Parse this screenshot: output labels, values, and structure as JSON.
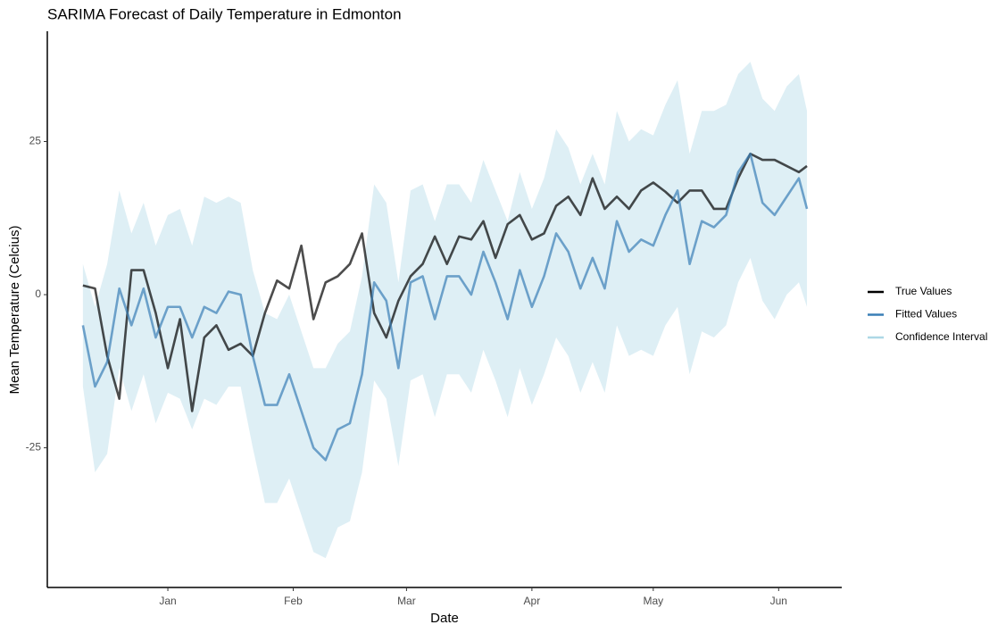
{
  "chart_data": {
    "type": "line",
    "title": "SARIMA Forecast of Daily Temperature in Edmonton",
    "xlabel": "Date",
    "ylabel": "Mean Temperature (Celcius)",
    "x": [
      0,
      3,
      6,
      9,
      12,
      15,
      18,
      21,
      24,
      27,
      30,
      33,
      36,
      39,
      42,
      45,
      48,
      51,
      54,
      57,
      60,
      63,
      66,
      69,
      72,
      75,
      78,
      81,
      84,
      87,
      90,
      93,
      96,
      99,
      102,
      105,
      108,
      111,
      114,
      117,
      120,
      123,
      126,
      129,
      132,
      135,
      138,
      141,
      144,
      147,
      150,
      153,
      156,
      159,
      162,
      165,
      168,
      171,
      174,
      177,
      179
    ],
    "xlim": [
      -8.8,
      187.6
    ],
    "xticks": [
      {
        "value": 21,
        "label": "Jan"
      },
      {
        "value": 52,
        "label": "Feb"
      },
      {
        "value": 80,
        "label": "Mar"
      },
      {
        "value": 111,
        "label": "Apr"
      },
      {
        "value": 141,
        "label": "May"
      },
      {
        "value": 172,
        "label": "Jun"
      }
    ],
    "ylim": [
      -47.8,
      43
    ],
    "yticks": [
      -25,
      0,
      25
    ],
    "grid": false,
    "legend": "right",
    "series": [
      {
        "name": "True Values",
        "color": "#000000",
        "values": [
          1.5,
          1,
          -10,
          -17,
          4,
          4,
          -3,
          -12,
          -4,
          -19,
          -7,
          -5,
          -9,
          -8,
          -10,
          -3,
          2.3,
          1,
          8,
          -4,
          2,
          3,
          5,
          10,
          -3,
          -7,
          -1,
          3,
          5,
          9.5,
          5,
          9.5,
          9,
          12,
          6,
          11.5,
          13,
          9,
          10,
          14.5,
          16,
          13,
          19,
          14,
          16,
          14,
          17,
          18.3,
          16.8,
          15,
          17,
          17,
          14,
          14,
          19,
          23,
          22,
          22,
          21,
          20,
          21
        ]
      },
      {
        "name": "Fitted Values",
        "color": "#3a7fb6",
        "values": [
          -5,
          -15,
          -11,
          1,
          -5,
          1,
          -7,
          -2,
          -2,
          -7,
          -2,
          -3,
          0.5,
          0,
          -10,
          -18,
          -18,
          -13,
          -19,
          -25,
          -27,
          -22,
          -21,
          -13,
          2,
          -1,
          -12,
          2,
          3,
          -4,
          3,
          3,
          0,
          7,
          2,
          -4,
          4,
          -2,
          3,
          10,
          7,
          1,
          6,
          1,
          12,
          7,
          9,
          8,
          13,
          17,
          5,
          12,
          11,
          13,
          20,
          23,
          15,
          13,
          16,
          19,
          14
        ]
      },
      {
        "name": "Confidence Interval",
        "color": "#add8e6",
        "upper": [
          5,
          -2,
          5,
          17,
          10,
          15,
          8,
          13,
          14,
          8,
          16,
          15,
          16,
          15,
          4,
          -3,
          -4,
          0,
          -6,
          -12,
          -12,
          -8,
          -6,
          3,
          18,
          15,
          2,
          17,
          18,
          12,
          18,
          18,
          15,
          22,
          17,
          12,
          20,
          14,
          19,
          27,
          24,
          18,
          23,
          18,
          30,
          25,
          27,
          26,
          31,
          35,
          23,
          30,
          30,
          31,
          36,
          38,
          32,
          30,
          34,
          36,
          30
        ],
        "lower": [
          -15,
          -29,
          -26,
          -12,
          -19,
          -13,
          -21,
          -16,
          -17,
          -22,
          -17,
          -18,
          -15,
          -15,
          -25,
          -34,
          -34,
          -30,
          -36,
          -42,
          -43,
          -38,
          -37,
          -29,
          -14,
          -17,
          -28,
          -14,
          -13,
          -20,
          -13,
          -13,
          -16,
          -9,
          -14,
          -20,
          -12,
          -18,
          -13,
          -7,
          -10,
          -16,
          -11,
          -16,
          -5,
          -10,
          -9,
          -10,
          -5,
          -2,
          -13,
          -6,
          -7,
          -5,
          2,
          6,
          -1,
          -4,
          0,
          2,
          -2
        ]
      }
    ]
  }
}
